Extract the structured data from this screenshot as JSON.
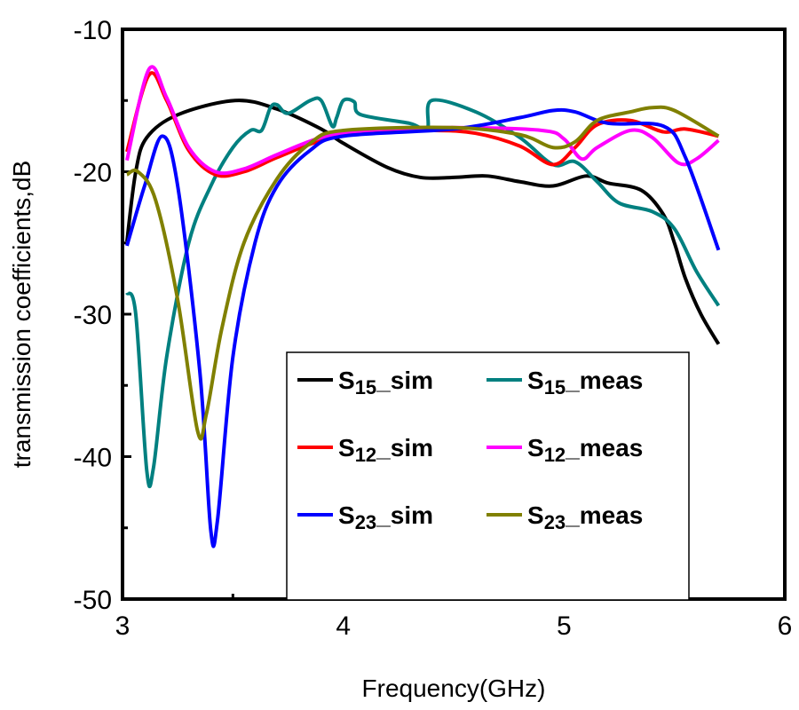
{
  "chart_data": {
    "type": "line",
    "xlabel": "Frequency(GHz)",
    "ylabel": "transmission coefficients,dB",
    "xlim": [
      3,
      6
    ],
    "ylim": [
      -50,
      -10
    ],
    "xticks": [
      3,
      4,
      5,
      6
    ],
    "yticks": [
      -10,
      -20,
      -30,
      -40,
      -50
    ],
    "grid": false,
    "legend_placement": "bottom-center",
    "series": [
      {
        "name": "S15_sim",
        "base": "S",
        "sub": "15",
        "suffix": "_sim",
        "color": "#000000",
        "x": [
          3.02,
          3.06,
          3.11,
          3.25,
          3.51,
          3.7,
          3.9,
          4.0,
          4.2,
          4.35,
          4.5,
          4.65,
          4.8,
          4.95,
          5.1,
          5.2,
          5.35,
          5.45,
          5.5,
          5.55,
          5.62,
          5.7
        ],
        "y": [
          -24.9,
          -20,
          -17.6,
          -16.0,
          -15.0,
          -15.6,
          -17.0,
          -18.0,
          -19.7,
          -20.4,
          -20.4,
          -20.3,
          -20.7,
          -21.0,
          -20.3,
          -20.8,
          -21.3,
          -23,
          -25,
          -27.5,
          -30,
          -32.1
        ]
      },
      {
        "name": "S15_meas",
        "base": "S",
        "sub": "15",
        "suffix": "_meas",
        "color": "#008080",
        "x": [
          3.02,
          3.06,
          3.11,
          3.14,
          3.2,
          3.3,
          3.4,
          3.5,
          3.58,
          3.63,
          3.67,
          3.7,
          3.75,
          3.85,
          3.9,
          3.95,
          3.97,
          4.0,
          4.05,
          4.08,
          4.3,
          4.38,
          4.4,
          4.6,
          4.8,
          4.95,
          5.05,
          5.15,
          5.25,
          5.4,
          5.5,
          5.6,
          5.7
        ],
        "y": [
          -28.5,
          -30,
          -41.0,
          -40.8,
          -33,
          -25,
          -21,
          -18.3,
          -17.1,
          -17.1,
          -15.5,
          -15.3,
          -15.9,
          -15.0,
          -15.0,
          -16.8,
          -16.2,
          -15.0,
          -15.1,
          -16.0,
          -16.6,
          -17.0,
          -15.0,
          -15.8,
          -17.6,
          -19.5,
          -19.3,
          -20.7,
          -22.2,
          -22.8,
          -24,
          -27,
          -29.4
        ]
      },
      {
        "name": "S12_sim",
        "base": "S",
        "sub": "12",
        "suffix": "_sim",
        "color": "#ff0000",
        "x": [
          3.02,
          3.12,
          3.2,
          3.3,
          3.42,
          3.55,
          3.7,
          3.9,
          4.1,
          4.4,
          4.6,
          4.8,
          4.95,
          5.05,
          5.15,
          5.3,
          5.45,
          5.55,
          5.7
        ],
        "y": [
          -18.6,
          -13.2,
          -15,
          -18.5,
          -20.2,
          -20.0,
          -19.0,
          -17.8,
          -17.2,
          -17.1,
          -17.3,
          -18.2,
          -19.5,
          -18.3,
          -16.7,
          -16.4,
          -17.2,
          -17.0,
          -17.5
        ]
      },
      {
        "name": "S12_meas",
        "base": "S",
        "sub": "12",
        "suffix": "_meas",
        "color": "#ff00ff",
        "x": [
          3.02,
          3.12,
          3.2,
          3.3,
          3.42,
          3.55,
          3.7,
          3.9,
          4.1,
          4.5,
          4.9,
          5.0,
          5.08,
          5.15,
          5.3,
          5.4,
          5.52,
          5.6,
          5.7
        ],
        "y": [
          -19.2,
          -12.8,
          -14.8,
          -18.3,
          -20.0,
          -19.8,
          -18.8,
          -17.6,
          -17.1,
          -16.9,
          -17.1,
          -17.7,
          -19.1,
          -18.3,
          -17.1,
          -17.6,
          -19.4,
          -19.1,
          -17.8
        ]
      },
      {
        "name": "S23_sim",
        "base": "S",
        "sub": "23",
        "suffix": "_sim",
        "color": "#0000ff",
        "x": [
          3.02,
          3.1,
          3.18,
          3.25,
          3.35,
          3.4,
          3.43,
          3.5,
          3.6,
          3.7,
          3.85,
          4.0,
          4.5,
          4.8,
          4.95,
          5.05,
          5.2,
          5.45,
          5.55,
          5.7
        ],
        "y": [
          -25.2,
          -21,
          -17.5,
          -21,
          -34,
          -45.2,
          -44.5,
          -33,
          -25,
          -21,
          -18.5,
          -17.5,
          -17.0,
          -16.2,
          -15.7,
          -15.8,
          -16.6,
          -16.8,
          -19,
          -25.5
        ]
      },
      {
        "name": "S23_meas",
        "base": "S",
        "sub": "23",
        "suffix": "_meas",
        "color": "#808000",
        "x": [
          3.02,
          3.07,
          3.15,
          3.25,
          3.34,
          3.38,
          3.45,
          3.55,
          3.7,
          3.85,
          4.0,
          4.5,
          4.8,
          4.95,
          5.05,
          5.15,
          5.3,
          5.4,
          5.5,
          5.7
        ],
        "y": [
          -20.2,
          -20,
          -22,
          -29,
          -38.2,
          -37,
          -31,
          -25,
          -20.5,
          -18,
          -17.1,
          -16.9,
          -17.4,
          -18.3,
          -17.9,
          -16.4,
          -15.8,
          -15.5,
          -15.7,
          -17.5
        ]
      }
    ]
  }
}
